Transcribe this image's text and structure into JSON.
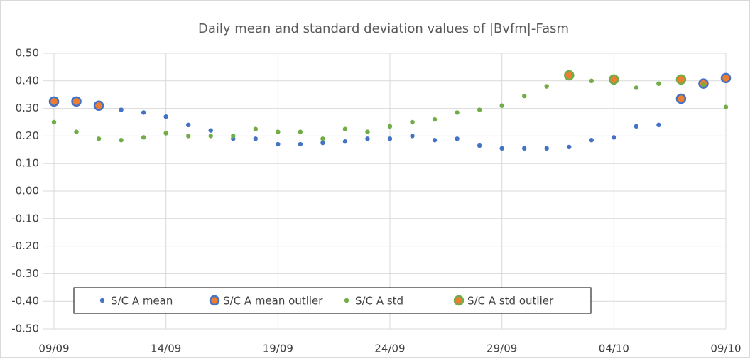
{
  "chart_data": {
    "type": "scatter",
    "title": "Daily mean and standard deviation values of |Bvfm|-Fasm",
    "categories": [
      "09/09",
      null,
      null,
      null,
      null,
      "14/09",
      null,
      null,
      null,
      null,
      "19/09",
      null,
      null,
      null,
      null,
      "24/09",
      null,
      null,
      null,
      null,
      "29/09",
      null,
      null,
      null,
      null,
      "04/10",
      null,
      null,
      null,
      null,
      "09/10"
    ],
    "series": [
      {
        "name": "S/C A mean",
        "color": "#4472c4",
        "marker": "small",
        "values": [
          null,
          null,
          null,
          0.295,
          0.285,
          0.27,
          0.24,
          0.22,
          0.19,
          0.19,
          0.17,
          0.17,
          0.175,
          0.18,
          0.19,
          0.19,
          0.2,
          0.185,
          0.19,
          0.165,
          0.155,
          0.155,
          0.155,
          0.16,
          0.185,
          0.195,
          0.235,
          0.24,
          null,
          null,
          null
        ]
      },
      {
        "name": "S/C A mean outlier",
        "color": "#4472c4",
        "fill": "#ed7d31",
        "marker": "large",
        "values": [
          0.325,
          0.325,
          0.31,
          null,
          null,
          null,
          null,
          null,
          null,
          null,
          null,
          null,
          null,
          null,
          null,
          null,
          null,
          null,
          null,
          null,
          null,
          null,
          null,
          null,
          null,
          null,
          null,
          null,
          0.335,
          0.39,
          0.41
        ]
      },
      {
        "name": "S/C A std",
        "color": "#70ad47",
        "marker": "small",
        "values": [
          0.25,
          0.215,
          0.19,
          0.185,
          0.195,
          0.21,
          0.2,
          0.2,
          0.2,
          0.225,
          0.215,
          0.215,
          0.19,
          0.225,
          0.215,
          0.235,
          0.25,
          0.26,
          0.285,
          0.295,
          0.31,
          0.345,
          0.38,
          null,
          0.4,
          null,
          0.375,
          0.39,
          null,
          0.385,
          0.305
        ]
      },
      {
        "name": "S/C A std outlier",
        "color": "#70ad47",
        "fill": "#ed7d31",
        "marker": "large",
        "values": [
          null,
          null,
          null,
          null,
          null,
          null,
          null,
          null,
          null,
          null,
          null,
          null,
          null,
          null,
          null,
          null,
          null,
          null,
          null,
          null,
          null,
          null,
          null,
          0.42,
          null,
          0.405,
          null,
          null,
          0.405,
          null,
          null
        ]
      }
    ],
    "ylim": [
      -0.5,
      0.5
    ],
    "yticks": [
      {
        "value": -0.5,
        "label": "-0.50"
      },
      {
        "value": -0.4,
        "label": "-0.40"
      },
      {
        "value": -0.3,
        "label": "-0.30"
      },
      {
        "value": -0.2,
        "label": "-0.20"
      },
      {
        "value": -0.1,
        "label": "-0.10"
      },
      {
        "value": 0,
        "label": "0.00"
      },
      {
        "value": 0.1,
        "label": "0.10"
      },
      {
        "value": 0.2,
        "label": "0.20"
      },
      {
        "value": 0.3,
        "label": "0.30"
      },
      {
        "value": 0.4,
        "label": "0.40"
      },
      {
        "value": 0.5,
        "label": "0.50"
      }
    ],
    "grid": true,
    "legend": "lower left"
  }
}
